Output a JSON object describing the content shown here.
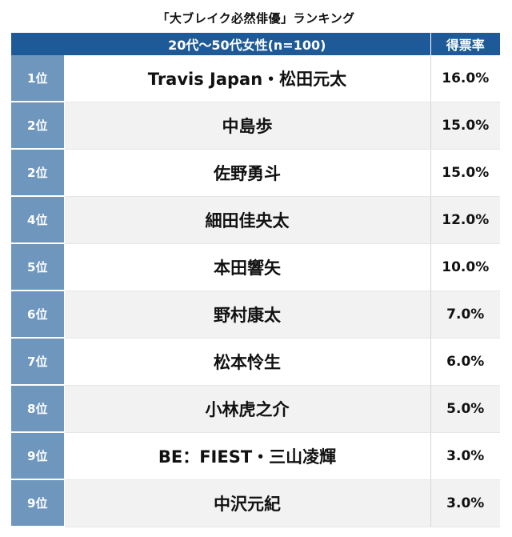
{
  "chart_data": {
    "type": "table",
    "title": "「大ブレイク必然俳優」ランキング",
    "header": {
      "group": "20代〜50代女性(n=100)",
      "rate": "得票率"
    },
    "rows": [
      {
        "rank": "1位",
        "name": "Travis Japan・松田元太",
        "rate": "16.0%",
        "value": 16.0
      },
      {
        "rank": "2位",
        "name": "中島歩",
        "rate": "15.0%",
        "value": 15.0
      },
      {
        "rank": "2位",
        "name": "佐野勇斗",
        "rate": "15.0%",
        "value": 15.0
      },
      {
        "rank": "4位",
        "name": "細田佳央太",
        "rate": "12.0%",
        "value": 12.0
      },
      {
        "rank": "5位",
        "name": "本田響矢",
        "rate": "10.0%",
        "value": 10.0
      },
      {
        "rank": "6位",
        "name": "野村康太",
        "rate": "7.0%",
        "value": 7.0
      },
      {
        "rank": "7位",
        "name": "松本怜生",
        "rate": "6.0%",
        "value": 6.0
      },
      {
        "rank": "8位",
        "name": "小林虎之介",
        "rate": "5.0%",
        "value": 5.0
      },
      {
        "rank": "9位",
        "name": "BE：FIEST・三山凌輝",
        "rate": "3.0%",
        "value": 3.0
      },
      {
        "rank": "9位",
        "name": "中沢元紀",
        "rate": "3.0%",
        "value": 3.0
      }
    ]
  },
  "colors": {
    "header_bg": "#1e5a97",
    "rank_bg": "#6f97bd",
    "stripe_bg": "#f2f2f2"
  }
}
